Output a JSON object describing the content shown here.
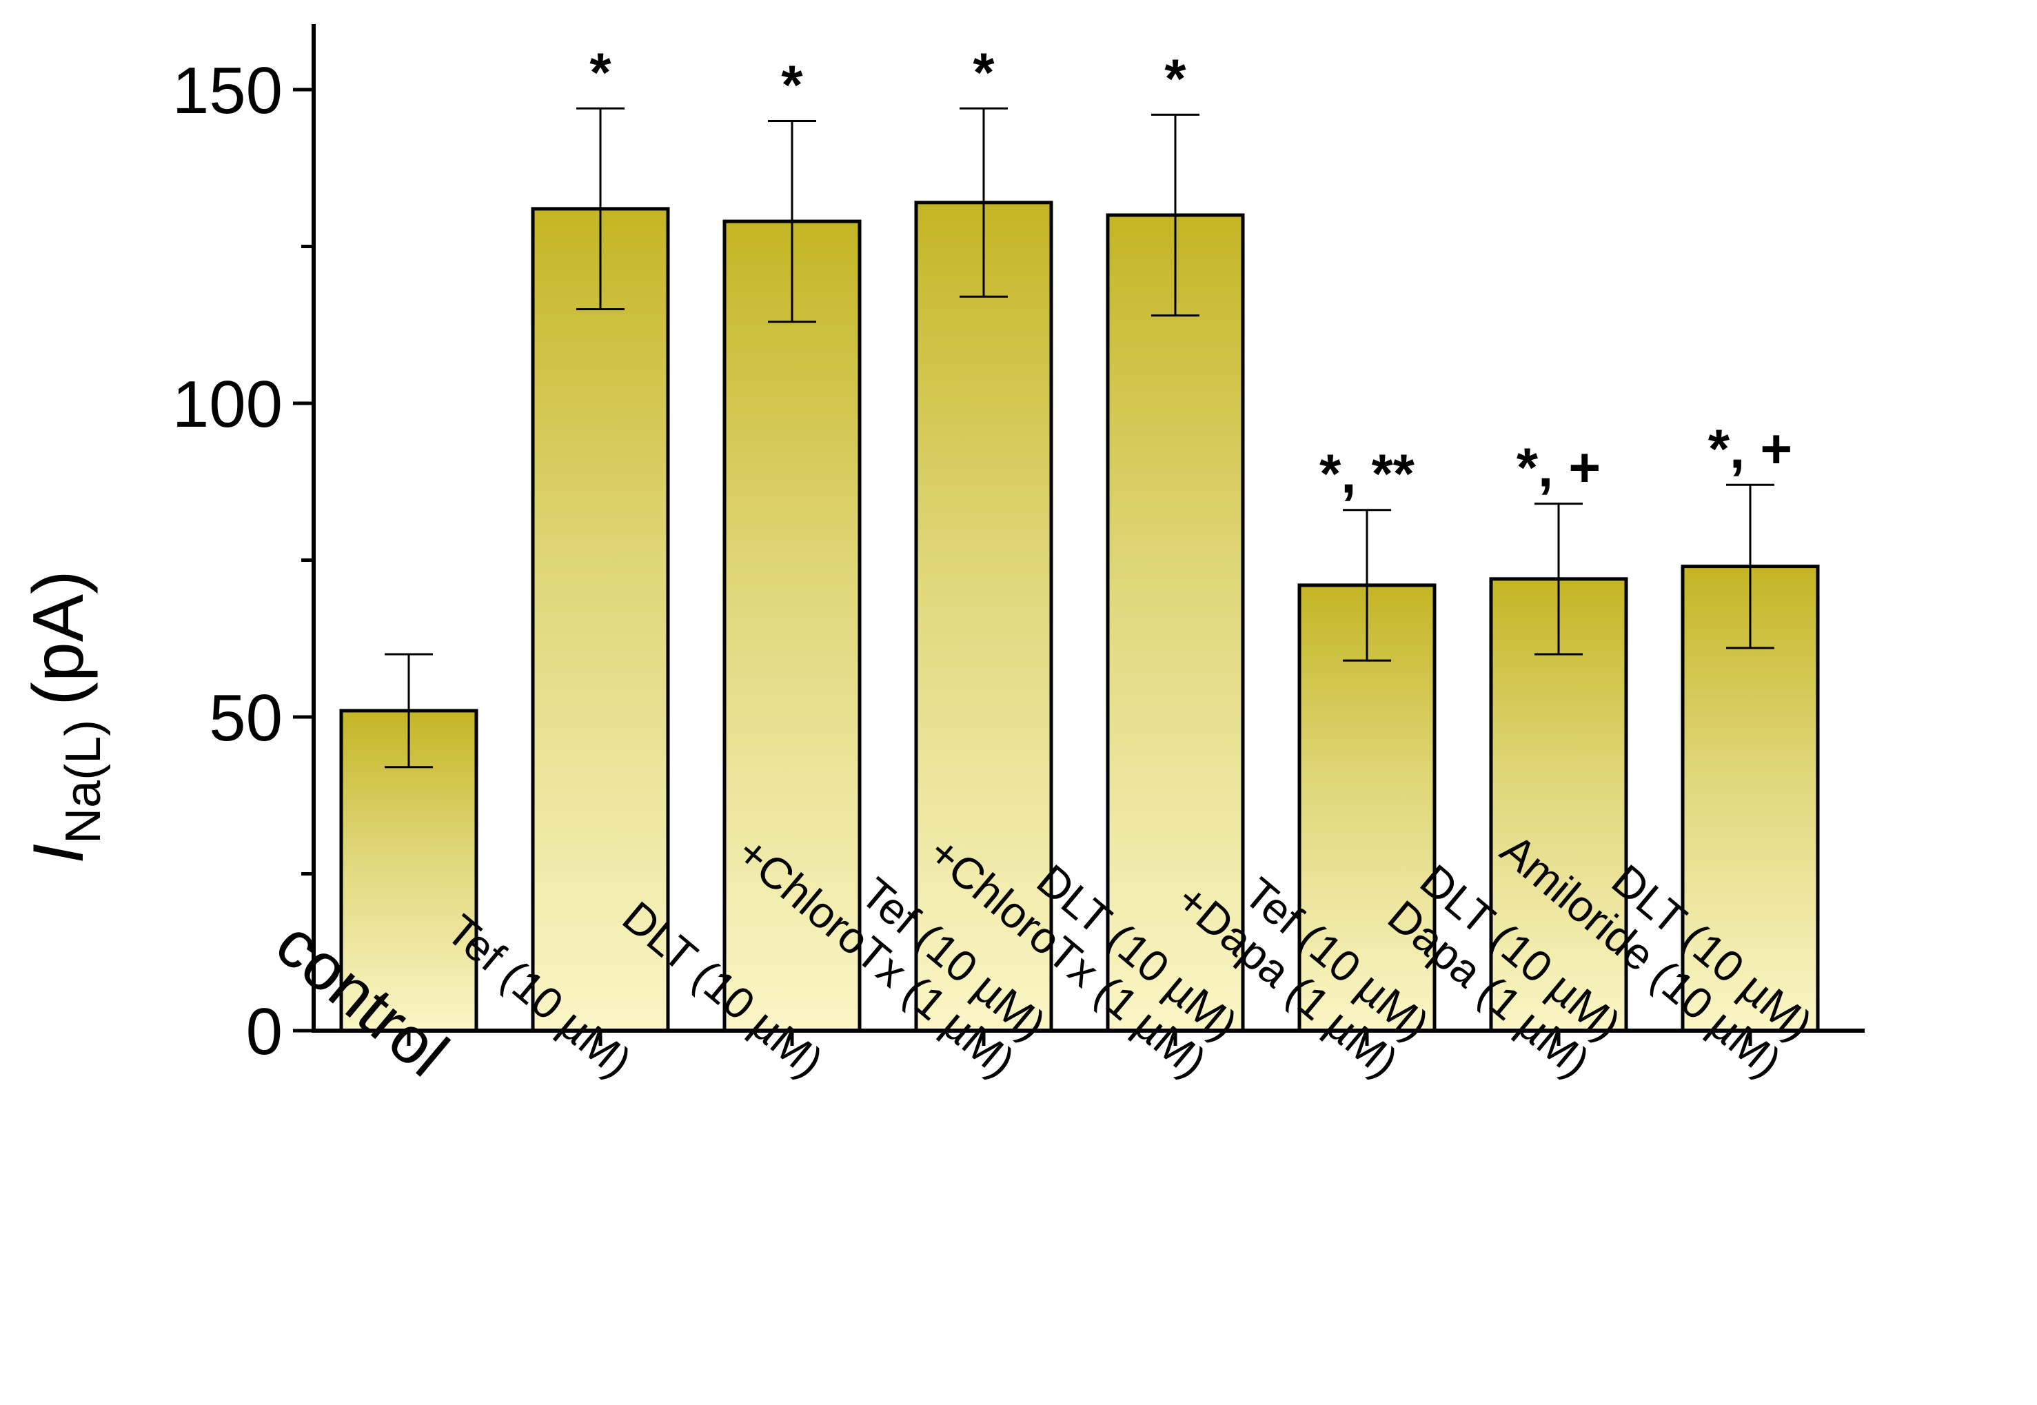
{
  "chart_data": {
    "type": "bar",
    "title": "",
    "xlabel": "",
    "ylabel": {
      "symbol": "I",
      "subscript": "Na(L)",
      "unit": "(pA)"
    },
    "ylim": [
      0,
      160
    ],
    "yticks": [
      "0",
      "50",
      "100",
      "150"
    ],
    "categories": [
      {
        "lines": [
          "control"
        ]
      },
      {
        "lines": [
          "Tef (10 µM)"
        ]
      },
      {
        "lines": [
          "DLT (10 µM)"
        ]
      },
      {
        "lines": [
          "Tef (10 µM)",
          "+ChloroTx (1 µM)"
        ]
      },
      {
        "lines": [
          "DLT (10 µM)",
          "+ChloroTx (1 µM)"
        ]
      },
      {
        "lines": [
          "Tef (10 µM)",
          "+Dapa (1 µM)"
        ]
      },
      {
        "lines": [
          "DLT (10 µM)",
          "Dapa (1 µM)"
        ]
      },
      {
        "lines": [
          "DLT (10 µM)",
          "Amiloride (10 µM)"
        ]
      }
    ],
    "values": [
      51,
      131,
      129,
      132,
      130,
      71,
      72,
      74
    ],
    "errors": [
      9,
      16,
      16,
      15,
      16,
      12,
      12,
      13
    ],
    "significance": [
      "",
      "*",
      "*",
      "*",
      "*",
      "*, **",
      "*, +",
      "*, +"
    ],
    "colors": {
      "bar_top": "#c4b524",
      "bar_bottom": "#faf6c6",
      "axis": "#000000"
    }
  }
}
